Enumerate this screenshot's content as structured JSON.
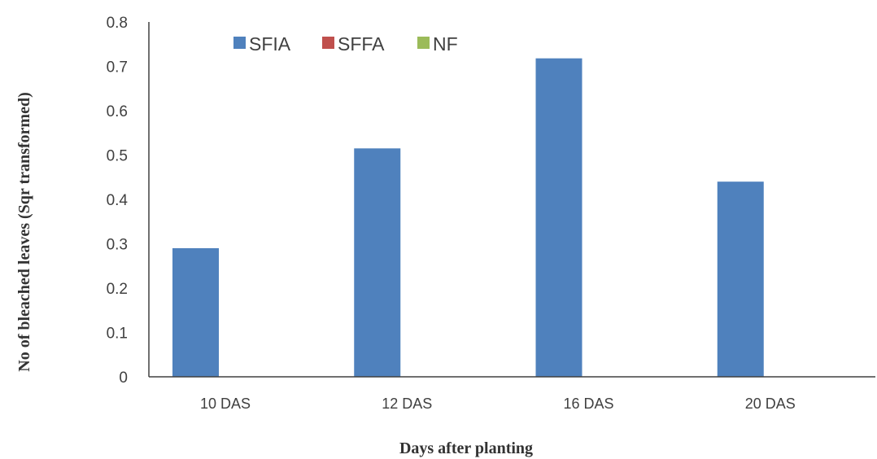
{
  "chart_data": {
    "type": "bar",
    "title": "",
    "xlabel": "Days after planting",
    "ylabel": "No of bleached leaves (Sqr transformed)",
    "categories": [
      "10 DAS",
      "12 DAS",
      "16 DAS",
      "20 DAS"
    ],
    "series": [
      {
        "name": "SFIA",
        "color": "#4f81bd",
        "values": [
          0.29,
          0.515,
          0.718,
          0.44
        ]
      },
      {
        "name": "SFFA",
        "color": "#c0504d",
        "values": [
          0,
          0,
          0,
          0
        ]
      },
      {
        "name": "NF",
        "color": "#9bbb59",
        "values": [
          0,
          0,
          0,
          0
        ]
      }
    ],
    "ylim": [
      0,
      0.8
    ],
    "yticks": [
      "0",
      "0.1",
      "0.2",
      "0.3",
      "0.4",
      "0.5",
      "0.6",
      "0.7",
      "0.8"
    ],
    "grid": false,
    "legend_position": "top-left"
  }
}
